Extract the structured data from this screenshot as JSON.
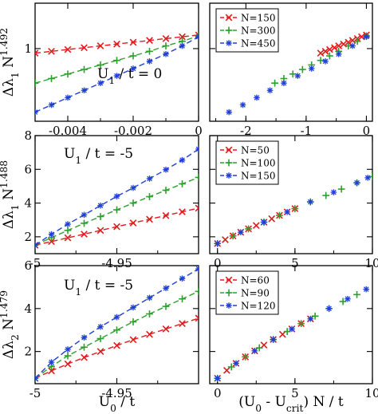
{
  "chart_data": [
    {
      "id": "top-left",
      "type": "line",
      "xlim": [
        -0.005,
        0.0
      ],
      "ylim": [
        0.2,
        1.5
      ],
      "xticks": [
        -0.004,
        -0.002,
        0
      ],
      "xtick_labels": [
        "-0.004",
        "-0.002",
        "0"
      ],
      "yticks": [
        1
      ],
      "ytick_labels": [
        "1"
      ],
      "ylabel": {
        "base": "Δλ",
        "sub": "1",
        "mid": " N",
        "sup": "1.492"
      },
      "annotation": {
        "base": "U",
        "sub": "1",
        "rest": " / t = 0"
      },
      "series": [
        {
          "name": "N=150",
          "color": "#e31a1c",
          "marker": "x",
          "x": [
            -0.005,
            -0.0045,
            -0.004,
            -0.0035,
            -0.003,
            -0.0025,
            -0.002,
            -0.0015,
            -0.001,
            -0.0005,
            0.0
          ],
          "y": [
            0.95,
            0.97,
            0.99,
            1.01,
            1.03,
            1.05,
            1.07,
            1.09,
            1.11,
            1.13,
            1.15
          ]
        },
        {
          "name": "N=300",
          "color": "#2ca02c",
          "marker": "+",
          "x": [
            -0.005,
            -0.0045,
            -0.004,
            -0.0035,
            -0.003,
            -0.0025,
            -0.002,
            -0.0015,
            -0.001,
            -0.0005,
            0.0
          ],
          "y": [
            0.62,
            0.67,
            0.72,
            0.77,
            0.82,
            0.87,
            0.92,
            0.97,
            1.03,
            1.08,
            1.14
          ]
        },
        {
          "name": "N=450",
          "color": "#1f3fd6",
          "marker": "*",
          "x": [
            -0.005,
            -0.0045,
            -0.004,
            -0.0035,
            -0.003,
            -0.0025,
            -0.002,
            -0.0015,
            -0.001,
            -0.0005,
            0.0
          ],
          "y": [
            0.3,
            0.38,
            0.46,
            0.54,
            0.62,
            0.7,
            0.78,
            0.86,
            0.94,
            1.03,
            1.13
          ]
        }
      ]
    },
    {
      "id": "top-right",
      "type": "scatter",
      "xlim": [
        -2.6,
        0.1
      ],
      "ylim": [
        0.2,
        1.5
      ],
      "xticks": [
        -2,
        -1,
        0
      ],
      "xtick_labels": [
        "-2",
        "-1",
        "0"
      ],
      "legend": "top-left",
      "series": [
        {
          "name": "N=150",
          "color": "#e31a1c",
          "marker": "x",
          "x": [
            -0.76,
            -0.68,
            -0.61,
            -0.53,
            -0.46,
            -0.38,
            -0.3,
            -0.23,
            -0.15,
            -0.08,
            0.0
          ],
          "y": [
            0.95,
            0.97,
            0.99,
            1.01,
            1.03,
            1.05,
            1.07,
            1.09,
            1.11,
            1.13,
            1.15
          ]
        },
        {
          "name": "N=300",
          "color": "#2ca02c",
          "marker": "+",
          "x": [
            -1.52,
            -1.37,
            -1.22,
            -1.06,
            -0.91,
            -0.76,
            -0.61,
            -0.46,
            -0.3,
            -0.15,
            0.0
          ],
          "y": [
            0.62,
            0.67,
            0.72,
            0.77,
            0.82,
            0.87,
            0.92,
            0.97,
            1.03,
            1.08,
            1.14
          ]
        },
        {
          "name": "N=450",
          "color": "#1f3fd6",
          "marker": "*",
          "x": [
            -2.28,
            -2.05,
            -1.82,
            -1.6,
            -1.37,
            -1.14,
            -0.91,
            -0.68,
            -0.46,
            -0.23,
            0.0
          ],
          "y": [
            0.3,
            0.38,
            0.46,
            0.54,
            0.62,
            0.7,
            0.78,
            0.86,
            0.94,
            1.03,
            1.13
          ]
        }
      ]
    },
    {
      "id": "middle-left",
      "type": "line",
      "xlim": [
        -5.0,
        -4.9
      ],
      "ylim": [
        1.0,
        8.0
      ],
      "xticks": [
        -5,
        -4.95
      ],
      "xtick_labels": [
        "-5",
        "-4.95"
      ],
      "yticks": [
        2,
        4,
        6,
        8
      ],
      "ytick_labels": [
        "2",
        "4",
        "6",
        "8"
      ],
      "ylabel": {
        "base": "Δλ",
        "sub": "1",
        "mid": " N",
        "sup": "1.488"
      },
      "annotation": {
        "base": "U",
        "sub": "1",
        "rest": " / t = -5"
      },
      "series": [
        {
          "name": "N=50",
          "color": "#e31a1c",
          "marker": "x",
          "x": [
            -5.0,
            -4.99,
            -4.98,
            -4.97,
            -4.96,
            -4.95,
            -4.94,
            -4.93,
            -4.92,
            -4.91,
            -4.9
          ],
          "y": [
            1.5,
            1.72,
            1.94,
            2.16,
            2.38,
            2.6,
            2.82,
            3.04,
            3.26,
            3.48,
            3.7
          ]
        },
        {
          "name": "N=100",
          "color": "#2ca02c",
          "marker": "+",
          "x": [
            -5.0,
            -4.99,
            -4.98,
            -4.97,
            -4.96,
            -4.95,
            -4.94,
            -4.93,
            -4.92,
            -4.91,
            -4.9
          ],
          "y": [
            1.5,
            1.95,
            2.38,
            2.8,
            3.2,
            3.6,
            4.0,
            4.38,
            4.76,
            5.14,
            5.52
          ]
        },
        {
          "name": "N=150",
          "color": "#1f3fd6",
          "marker": "*",
          "x": [
            -5.0,
            -4.99,
            -4.98,
            -4.97,
            -4.96,
            -4.95,
            -4.94,
            -4.93,
            -4.92,
            -4.91,
            -4.9
          ],
          "y": [
            1.5,
            2.15,
            2.75,
            3.3,
            3.85,
            4.4,
            4.9,
            5.45,
            5.98,
            6.55,
            7.2
          ]
        }
      ]
    },
    {
      "id": "middle-right",
      "type": "scatter",
      "xlim": [
        -0.5,
        10.0
      ],
      "ylim": [
        1.0,
        8.0
      ],
      "xticks": [
        0,
        5,
        10
      ],
      "xtick_labels": [
        "0",
        "5",
        "10"
      ],
      "legend": "top-left",
      "series": [
        {
          "name": "N=50",
          "color": "#e31a1c",
          "marker": "x",
          "x": [
            0.0,
            0.5,
            1.0,
            1.5,
            2.0,
            2.5,
            3.0,
            3.5,
            4.0,
            4.5,
            5.0
          ],
          "y": [
            1.6,
            1.83,
            2.05,
            2.27,
            2.47,
            2.67,
            2.87,
            3.07,
            3.27,
            3.47,
            3.67
          ]
        },
        {
          "name": "N=100",
          "color": "#2ca02c",
          "marker": "+",
          "x": [
            0.0,
            1.0,
            2.0,
            3.0,
            4.0,
            5.0,
            6.0,
            7.0,
            8.0,
            9.0,
            10.0
          ],
          "y": [
            1.6,
            2.05,
            2.47,
            2.87,
            3.27,
            3.67,
            4.07,
            4.45,
            4.83,
            5.2,
            5.57
          ]
        },
        {
          "name": "N=150",
          "color": "#1f3fd6",
          "marker": "*",
          "x": [
            0.0,
            1.5,
            3.0,
            4.5,
            6.0,
            7.5,
            9.0,
            9.7
          ],
          "y": [
            1.6,
            2.27,
            2.87,
            3.47,
            4.07,
            4.64,
            5.2,
            5.5
          ]
        }
      ]
    },
    {
      "id": "bottom-left",
      "type": "line",
      "xlim": [
        -5.0,
        -4.9
      ],
      "ylim": [
        0.5,
        6.0
      ],
      "xticks": [
        -5,
        -4.95
      ],
      "xtick_labels": [
        "-5",
        "-4.95"
      ],
      "yticks": [
        2,
        4,
        6
      ],
      "ytick_labels": [
        "2",
        "4",
        "6"
      ],
      "xlabel": {
        "base": "U",
        "sub": "0",
        "rest": " / t"
      },
      "ylabel": {
        "base": "Δλ",
        "sub": "2",
        "mid": " N",
        "sup": "1.479"
      },
      "annotation": {
        "base": "U",
        "sub": "1",
        "rest": " / t = -5"
      },
      "series": [
        {
          "name": "N=60",
          "color": "#e31a1c",
          "marker": "x",
          "x": [
            -5.0,
            -4.99,
            -4.98,
            -4.97,
            -4.96,
            -4.95,
            -4.94,
            -4.93,
            -4.92,
            -4.91,
            -4.9
          ],
          "y": [
            0.75,
            1.1,
            1.42,
            1.72,
            2.0,
            2.28,
            2.55,
            2.8,
            3.05,
            3.3,
            3.55
          ]
        },
        {
          "name": "N=90",
          "color": "#2ca02c",
          "marker": "+",
          "x": [
            -5.0,
            -4.99,
            -4.98,
            -4.97,
            -4.96,
            -4.95,
            -4.94,
            -4.93,
            -4.92,
            -4.91,
            -4.9
          ],
          "y": [
            0.75,
            1.3,
            1.8,
            2.2,
            2.6,
            3.0,
            3.38,
            3.75,
            4.1,
            4.45,
            4.8
          ]
        },
        {
          "name": "N=120",
          "color": "#1f3fd6",
          "marker": "*",
          "x": [
            -5.0,
            -4.99,
            -4.98,
            -4.97,
            -4.96,
            -4.95,
            -4.94,
            -4.93,
            -4.92,
            -4.91,
            -4.9
          ],
          "y": [
            0.75,
            1.5,
            2.1,
            2.65,
            3.15,
            3.6,
            4.05,
            4.5,
            4.95,
            5.4,
            5.85
          ]
        }
      ]
    },
    {
      "id": "bottom-right",
      "type": "scatter",
      "xlim": [
        -0.5,
        10.0
      ],
      "ylim": [
        0.5,
        6.0
      ],
      "xticks": [
        0,
        5,
        10
      ],
      "xtick_labels": [
        "0",
        "5",
        "10"
      ],
      "xlabel": {
        "base": "(U",
        "sub": "0",
        "mid": " - U",
        "sub2": "crit",
        "rest": ") N / t"
      },
      "legend": "top-left",
      "series": [
        {
          "name": "N=60",
          "color": "#e31a1c",
          "marker": "x",
          "x": [
            0.0,
            0.6,
            1.2,
            1.8,
            2.4,
            3.0,
            3.6,
            4.2,
            4.8,
            5.4,
            6.0
          ],
          "y": [
            0.75,
            1.12,
            1.45,
            1.75,
            2.03,
            2.3,
            2.56,
            2.8,
            3.05,
            3.3,
            3.52
          ]
        },
        {
          "name": "N=90",
          "color": "#2ca02c",
          "marker": "+",
          "x": [
            0.0,
            0.9,
            1.8,
            2.7,
            3.6,
            4.5,
            5.4,
            6.3,
            7.2,
            8.1,
            9.0
          ],
          "y": [
            0.75,
            1.28,
            1.75,
            2.17,
            2.56,
            2.93,
            3.3,
            3.65,
            4.0,
            4.33,
            4.65
          ]
        },
        {
          "name": "N=120",
          "color": "#1f3fd6",
          "marker": "*",
          "x": [
            0.0,
            1.2,
            2.4,
            3.6,
            4.8,
            6.0,
            7.2,
            8.4,
            9.6
          ],
          "y": [
            0.75,
            1.45,
            2.03,
            2.56,
            3.05,
            3.52,
            4.0,
            4.45,
            4.9
          ]
        }
      ]
    }
  ]
}
